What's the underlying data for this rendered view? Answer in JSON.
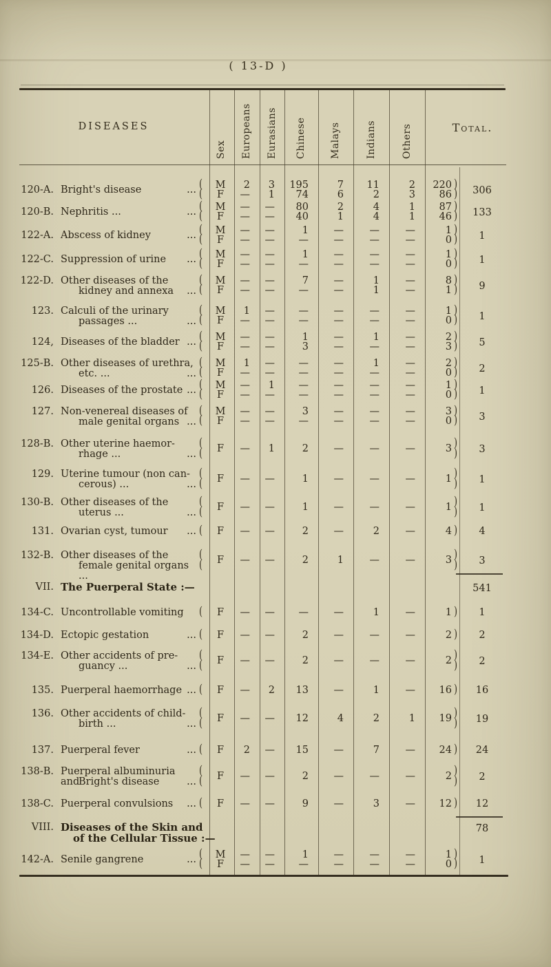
{
  "page": {
    "label": "( 13-D )"
  },
  "colors": {
    "paper": "#d8d2b6",
    "ink": "#2e2719",
    "rule": "#463e2d"
  },
  "table": {
    "diseases_header": "DISEASES",
    "sex_header": "Sex",
    "group_headers": [
      "Europeans",
      "Eurasians",
      "Chinese",
      "Malays",
      "Indians",
      "Others"
    ],
    "total_header": "Total.",
    "rows": [
      {
        "type": "d",
        "code": "120-A.",
        "lines": [
          {
            "t": "Bright's disease",
            "d": "..."
          }
        ],
        "sexes": [
          {
            "s": "M",
            "v": [
              "2",
              "3",
              "195",
              "7",
              "11",
              "2"
            ],
            "st": "220"
          },
          {
            "s": "F",
            "v": [
              "—",
              "1",
              "74",
              "6",
              "2",
              "3"
            ],
            "st": "86"
          }
        ],
        "total": "306"
      },
      {
        "type": "d",
        "code": "120-B.",
        "lines": [
          {
            "t": "Nephritis    ...",
            "d": "..."
          }
        ],
        "sexes": [
          {
            "s": "M",
            "v": [
              "—",
              "—",
              "80",
              "2",
              "4",
              "1"
            ],
            "st": "87"
          },
          {
            "s": "F",
            "v": [
              "—",
              "—",
              "40",
              "1",
              "4",
              "1"
            ],
            "st": "46"
          }
        ],
        "total": "133"
      },
      {
        "type": "d",
        "code": "122-A.",
        "lines": [
          {
            "t": "Abscess of kidney",
            "d": "..."
          }
        ],
        "sexes": [
          {
            "s": "M",
            "v": [
              "—",
              "—",
              "1",
              "—",
              "—",
              "—"
            ],
            "st": "1"
          },
          {
            "s": "F",
            "v": [
              "—",
              "—",
              "—",
              "—",
              "—",
              "—"
            ],
            "st": "0"
          }
        ],
        "total": "1"
      },
      {
        "type": "d",
        "code": "122-C.",
        "lines": [
          {
            "t": "Suppression of urine",
            "d": "..."
          }
        ],
        "sexes": [
          {
            "s": "M",
            "v": [
              "—",
              "—",
              "1",
              "—",
              "—",
              "—"
            ],
            "st": "1"
          },
          {
            "s": "F",
            "v": [
              "—",
              "—",
              "—",
              "—",
              "—",
              "—"
            ],
            "st": "0"
          }
        ],
        "total": "1"
      },
      {
        "type": "d",
        "code": "122-D.",
        "lines": [
          {
            "t": "Other diseases of the",
            "d": ""
          },
          {
            "t": "kidney and annexa",
            "d": "..."
          }
        ],
        "sexes": [
          {
            "s": "M",
            "v": [
              "—",
              "—",
              "7",
              "—",
              "1",
              "—"
            ],
            "st": "8"
          },
          {
            "s": "F",
            "v": [
              "—",
              "—",
              "—",
              "—",
              "1",
              "—"
            ],
            "st": "1"
          }
        ],
        "total": "9"
      },
      {
        "type": "d",
        "code": "123.",
        "lines": [
          {
            "t": "Calculi of the urinary",
            "d": ""
          },
          {
            "t": "passages    ...",
            "d": "..."
          }
        ],
        "sexes": [
          {
            "s": "M",
            "v": [
              "1",
              "—",
              "—",
              "—",
              "—",
              "—"
            ],
            "st": "1"
          },
          {
            "s": "F",
            "v": [
              "—",
              "—",
              "—",
              "—",
              "—",
              "—"
            ],
            "st": "0"
          }
        ],
        "total": "1"
      },
      {
        "type": "d",
        "code": "124,",
        "lines": [
          {
            "t": "Diseases of the bladder",
            "d": "..."
          }
        ],
        "sexes": [
          {
            "s": "M",
            "v": [
              "—",
              "—",
              "1",
              "—",
              "1",
              "—"
            ],
            "st": "2"
          },
          {
            "s": "F",
            "v": [
              "—",
              "—",
              "3",
              "—",
              "—",
              "—"
            ],
            "st": "3"
          }
        ],
        "total": "5"
      },
      {
        "type": "d",
        "code": "125-B.",
        "lines": [
          {
            "t": "Other diseases of urethra,",
            "d": ""
          },
          {
            "t": "etc.    ...",
            "d": "..."
          }
        ],
        "sexes": [
          {
            "s": "M",
            "v": [
              "1",
              "—",
              "—",
              "—",
              "1",
              "—"
            ],
            "st": "2"
          },
          {
            "s": "F",
            "v": [
              "—",
              "—",
              "—",
              "—",
              "—",
              "—"
            ],
            "st": "0"
          }
        ],
        "total": "2"
      },
      {
        "type": "d",
        "code": "126.",
        "lines": [
          {
            "t": "Diseases of the prostate",
            "d": "..."
          }
        ],
        "sexes": [
          {
            "s": "M",
            "v": [
              "—",
              "1",
              "—",
              "—",
              "—",
              "—"
            ],
            "st": "1"
          },
          {
            "s": "F",
            "v": [
              "—",
              "—",
              "—",
              "—",
              "—",
              "—"
            ],
            "st": "0"
          }
        ],
        "total": "1"
      },
      {
        "type": "d",
        "code": "127.",
        "lines": [
          {
            "t": "Non-venereal diseases of",
            "d": ""
          },
          {
            "t": "male genital organs",
            "d": "..."
          }
        ],
        "sexes": [
          {
            "s": "M",
            "v": [
              "—",
              "—",
              "3",
              "—",
              "—",
              "—"
            ],
            "st": "3"
          },
          {
            "s": "F",
            "v": [
              "—",
              "—",
              "—",
              "—",
              "—",
              "—"
            ],
            "st": "0"
          }
        ],
        "total": "3"
      },
      {
        "type": "d",
        "code": "128-B.",
        "lines": [
          {
            "t": "Other uterine haemor-",
            "d": ""
          },
          {
            "t": "rhage    ...",
            "d": "..."
          }
        ],
        "sexes": [
          {
            "s": "F",
            "v": [
              "—",
              "1",
              "2",
              "—",
              "—",
              "—"
            ],
            "st": "3"
          }
        ],
        "total": "3"
      },
      {
        "type": "d",
        "code": "129.",
        "lines": [
          {
            "t": "Uterine tumour (non can-",
            "d": ""
          },
          {
            "t": "cerous)    ...",
            "d": "..."
          }
        ],
        "sexes": [
          {
            "s": "F",
            "v": [
              "—",
              "—",
              "1",
              "—",
              "—",
              "—"
            ],
            "st": "1"
          }
        ],
        "total": "1"
      },
      {
        "type": "d",
        "code": "130-B.",
        "lines": [
          {
            "t": "Other diseases of the",
            "d": ""
          },
          {
            "t": "uterus    ...",
            "d": "..."
          }
        ],
        "sexes": [
          {
            "s": "F",
            "v": [
              "—",
              "—",
              "1",
              "—",
              "—",
              "—"
            ],
            "st": "1"
          }
        ],
        "total": "1"
      },
      {
        "type": "d",
        "code": "131.",
        "lines": [
          {
            "t": "Ovarian cyst, tumour",
            "d": "..."
          }
        ],
        "sexes": [
          {
            "s": "F",
            "v": [
              "—",
              "—",
              "2",
              "—",
              "2",
              "—"
            ],
            "st": "4"
          }
        ],
        "total": "4"
      },
      {
        "type": "d",
        "code": "132-B.",
        "lines": [
          {
            "t": "Other diseases of the",
            "d": ""
          },
          {
            "t": "female genital organs ...",
            "d": ""
          }
        ],
        "sexes": [
          {
            "s": "F",
            "v": [
              "—",
              "—",
              "2",
              "1",
              "—",
              "—"
            ],
            "st": "3"
          }
        ],
        "total": "3"
      },
      {
        "type": "s",
        "code": "VII.",
        "lines": [
          {
            "t": "The Puerperal State :—"
          }
        ],
        "prev": "541"
      },
      {
        "type": "d",
        "code": "134-C.",
        "lines": [
          {
            "t": "Uncontrollable vomiting",
            "d": ""
          }
        ],
        "sexes": [
          {
            "s": "F",
            "v": [
              "—",
              "—",
              "—",
              "—",
              "1",
              "—"
            ],
            "st": "1"
          }
        ],
        "total": "1"
      },
      {
        "type": "d",
        "code": "134-D.",
        "lines": [
          {
            "t": "Ectopic gestation",
            "d": "..."
          }
        ],
        "sexes": [
          {
            "s": "F",
            "v": [
              "—",
              "—",
              "2",
              "—",
              "—",
              "—"
            ],
            "st": "2"
          }
        ],
        "total": "2"
      },
      {
        "type": "d",
        "code": "134-E.",
        "lines": [
          {
            "t": "Other accidents of pre-",
            "d": ""
          },
          {
            "t": "guancy    ...",
            "d": "..."
          }
        ],
        "sexes": [
          {
            "s": "F",
            "v": [
              "—",
              "—",
              "2",
              "—",
              "—",
              "—"
            ],
            "st": "2"
          }
        ],
        "total": "2"
      },
      {
        "type": "d",
        "code": "135.",
        "lines": [
          {
            "t": "Puerperal haemorrhage",
            "d": "..."
          }
        ],
        "sexes": [
          {
            "s": "F",
            "v": [
              "—",
              "2",
              "13",
              "—",
              "1",
              "—"
            ],
            "st": "16"
          }
        ],
        "total": "16"
      },
      {
        "type": "d",
        "code": "136.",
        "lines": [
          {
            "t": "Other accidents of child-",
            "d": ""
          },
          {
            "t": "birth    ...",
            "d": "..."
          }
        ],
        "sexes": [
          {
            "s": "F",
            "v": [
              "—",
              "—",
              "12",
              "4",
              "2",
              "1"
            ],
            "st": "19"
          }
        ],
        "total": "19"
      },
      {
        "type": "d",
        "code": "137.",
        "lines": [
          {
            "t": "Puerperal fever",
            "d": "..."
          }
        ],
        "sexes": [
          {
            "s": "F",
            "v": [
              "2",
              "—",
              "15",
              "—",
              "7",
              "—"
            ],
            "st": "24"
          }
        ],
        "total": "24"
      },
      {
        "type": "d",
        "code": "138-B.",
        "lines": [
          {
            "t": "Puerperal albuminuria and",
            "d": ""
          },
          {
            "t": "Bright's disease",
            "d": "..."
          }
        ],
        "sexes": [
          {
            "s": "F",
            "v": [
              "—",
              "—",
              "2",
              "—",
              "—",
              "—"
            ],
            "st": "2"
          }
        ],
        "total": "2"
      },
      {
        "type": "d",
        "code": "138-C.",
        "lines": [
          {
            "t": "Puerperal convulsions",
            "d": "..."
          }
        ],
        "sexes": [
          {
            "s": "F",
            "v": [
              "—",
              "—",
              "9",
              "—",
              "3",
              "—"
            ],
            "st": "12"
          }
        ],
        "total": "12"
      },
      {
        "type": "s",
        "code": "VIII.",
        "lines": [
          {
            "t": "Diseases of the Skin and"
          },
          {
            "t": "of the Cellular Tissue :—"
          }
        ],
        "prev": "78"
      },
      {
        "type": "d",
        "code": "142-A.",
        "lines": [
          {
            "t": "Senile gangrene",
            "d": "..."
          }
        ],
        "sexes": [
          {
            "s": "M",
            "v": [
              "—",
              "—",
              "1",
              "—",
              "—",
              "—"
            ],
            "st": "1"
          },
          {
            "s": "F",
            "v": [
              "—",
              "—",
              "—",
              "—",
              "—",
              "—"
            ],
            "st": "0"
          }
        ],
        "total": "1"
      }
    ]
  }
}
